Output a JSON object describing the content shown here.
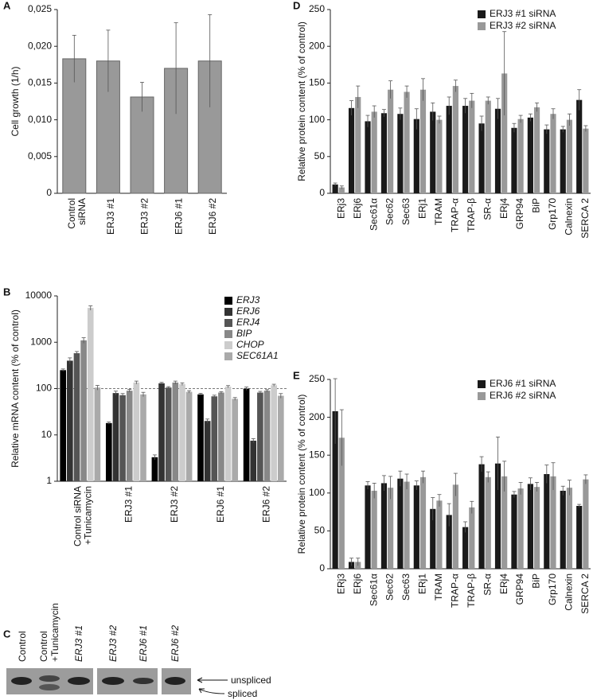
{
  "chart_data": [
    {
      "type": "bar",
      "panel_label": "A",
      "y_label": "Cell growth (1/h)",
      "categories": [
        [
          "Control",
          "siRNA"
        ],
        "ERJ3 #1",
        "ERJ3 #2",
        "ERJ6 #1",
        "ERJ6 #2"
      ],
      "values": [
        0.0183,
        0.018,
        0.0131,
        0.017,
        0.018
      ],
      "errors": [
        0.0032,
        0.0042,
        0.002,
        0.0062,
        0.0063
      ],
      "color": "#999999",
      "ylim": [
        0,
        0.025
      ],
      "yticks": [
        0,
        {
          "value": 0.005,
          "label": "0,005"
        },
        {
          "value": 0.01,
          "label": "0,010"
        },
        {
          "value": 0.015,
          "label": "0,015"
        },
        {
          "value": 0.02,
          "label": "0,020"
        },
        {
          "value": 0.025,
          "label": "0,025"
        }
      ]
    },
    {
      "type": "bar",
      "panel_label": "B",
      "y_label": "Relative mRNA content (% of control)",
      "yscale": "log",
      "reference_line": 100,
      "legend": "top-right",
      "categories": [
        [
          "Control siRNA",
          "+Tunicamycin"
        ],
        "ERJ3 #1",
        "ERJ3 #2",
        "ERJ6 #1",
        "ERJ6 #2"
      ],
      "series": [
        {
          "name": "ERJ3",
          "color": "#000000",
          "values": [
            250,
            18,
            3.3,
            75,
            100
          ],
          "errors": [
            15,
            1,
            0.4,
            4,
            8
          ]
        },
        {
          "name": "ERJ6",
          "color": "#333333",
          "values": [
            400,
            80,
            130,
            20,
            7.5
          ],
          "errors": [
            60,
            8,
            6,
            2,
            0.8
          ]
        },
        {
          "name": "ERJ4",
          "color": "#555555",
          "values": [
            580,
            72,
            105,
            68,
            82
          ],
          "errors": [
            50,
            6,
            5,
            4,
            5
          ]
        },
        {
          "name": "BIP",
          "color": "#888888",
          "values": [
            1100,
            90,
            135,
            82,
            90
          ],
          "errors": [
            150,
            6,
            10,
            4,
            5
          ]
        },
        {
          "name": "CHOP",
          "color": "#cccccc",
          "values": [
            5500,
            135,
            125,
            110,
            118
          ],
          "errors": [
            600,
            10,
            8,
            6,
            6
          ]
        },
        {
          "name": "SEC61A1",
          "color": "#aaaaaa",
          "values": [
            105,
            75,
            85,
            60,
            70
          ],
          "errors": [
            12,
            8,
            5,
            4,
            8
          ]
        }
      ],
      "ylim": [
        1,
        10000
      ],
      "yticks": [
        1,
        10,
        100,
        1000,
        10000
      ]
    },
    {
      "type": "bar",
      "panel_label": "D",
      "y_label": "Relative protein content (% of control)",
      "legend": "top-right",
      "categories": [
        "ERj3",
        "ERj6",
        "Sec61α",
        "Sec62",
        "Sec63",
        "ERj1",
        "TRAM",
        "TRAP-α",
        "TRAP-β",
        "SR-α",
        "ERj4",
        "GRP94",
        "BiP",
        "Grp170",
        "Calnexin",
        "SERCA 2"
      ],
      "series": [
        {
          "name": "ERJ3 #1 siRNA",
          "color": "#1a1a1a",
          "values": [
            12,
            116,
            98,
            109,
            108,
            101,
            111,
            119,
            119,
            95,
            115,
            89,
            103,
            87,
            87,
            127
          ],
          "errors": [
            2,
            10,
            8,
            5,
            8,
            14,
            12,
            12,
            10,
            10,
            14,
            6,
            5,
            6,
            4,
            14
          ]
        },
        {
          "name": "ERJ3 #2 siRNA",
          "color": "#999999",
          "values": [
            8,
            131,
            111,
            141,
            138,
            141,
            100,
            146,
            126,
            126,
            163,
            101,
            117,
            108,
            100,
            88
          ],
          "errors": [
            2,
            15,
            8,
            12,
            8,
            15,
            5,
            8,
            10,
            5,
            57,
            5,
            6,
            7,
            8,
            4
          ]
        }
      ],
      "ylim": [
        0,
        250
      ],
      "yticks": [
        0,
        50,
        100,
        150,
        200,
        250
      ]
    },
    {
      "type": "bar",
      "panel_label": "E",
      "y_label": "Relative protein content (% of control)",
      "legend": "top-right",
      "categories": [
        "ERj3",
        "ERj6",
        "Sec61α",
        "Sec62",
        "Sec63",
        "ERj1",
        "TRAM",
        "TRAP-α",
        "TRAP-β",
        "SR-α",
        "ERj4",
        "GRP94",
        "BiP",
        "Grp170",
        "Calnexin",
        "SERCA 2"
      ],
      "series": [
        {
          "name": "ERJ6 #1 siRNA",
          "color": "#1a1a1a",
          "values": [
            208,
            9,
            110,
            113,
            119,
            110,
            79,
            71,
            55,
            138,
            139,
            98,
            112,
            125,
            103,
            83
          ],
          "errors": [
            43,
            5,
            5,
            10,
            10,
            6,
            15,
            15,
            7,
            10,
            35,
            4,
            8,
            12,
            6,
            2
          ]
        },
        {
          "name": "ERJ6 #2 siRNA",
          "color": "#999999",
          "values": [
            173,
            9,
            103,
            107,
            115,
            121,
            90,
            111,
            81,
            121,
            122,
            106,
            108,
            122,
            107,
            118
          ],
          "errors": [
            37,
            5,
            10,
            15,
            10,
            8,
            8,
            15,
            8,
            7,
            20,
            8,
            6,
            18,
            10,
            6
          ]
        }
      ],
      "ylim": [
        0,
        250
      ],
      "yticks": [
        0,
        50,
        100,
        150,
        200,
        250
      ]
    }
  ],
  "gel": {
    "panel_label": "C",
    "lanes": [
      "Control",
      [
        "Control",
        "+Tunicamycin"
      ],
      "ERJ3 #1",
      "ERJ3 #2",
      "ERJ6 #1",
      "ERJ6 #2"
    ],
    "bands": [
      "unspliced",
      "spliced"
    ]
  }
}
